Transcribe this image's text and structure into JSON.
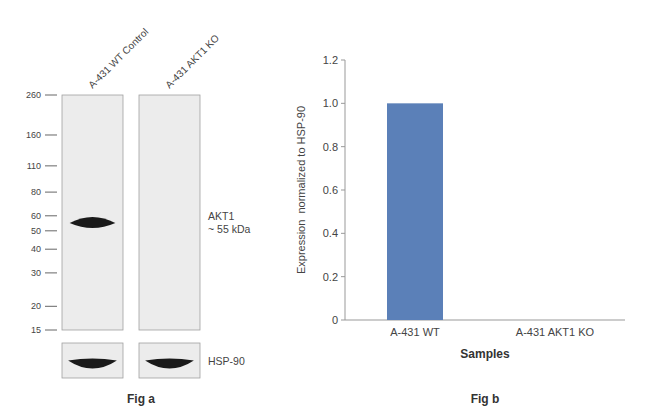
{
  "chart_data": [
    {
      "type": "blot",
      "title": "Fig a",
      "categories": [
        "A-431 WT Control",
        "A-431 AKT1 KO"
      ],
      "log": "y",
      "ylim": [
        15,
        260
      ],
      "yticks": [
        260,
        160,
        110,
        80,
        60,
        50,
        40,
        30,
        20,
        15
      ],
      "series": [
        {
          "name": "AKT1\n~ 55 kDa",
          "color": "#1a1a1a",
          "values": [
            55,
            null
          ]
        }
      ],
      "annotations": [
        "HSP-90"
      ]
    },
    {
      "type": "bar",
      "title": "Fig b",
      "categories": [
        "A-431 WT",
        "A-431 AKT1 KO"
      ],
      "values": [
        1.0,
        0.0
      ],
      "color": "#5b80b8",
      "ylim": [
        0,
        1.2
      ],
      "yticks": [
        0,
        0.2,
        0.4,
        0.6,
        0.8,
        {
          "value": 1.0,
          "label": "1.0"
        },
        1.2
      ],
      "xlabel": "Samples",
      "ylabel": "Expression  normalized to HSP-90"
    }
  ]
}
